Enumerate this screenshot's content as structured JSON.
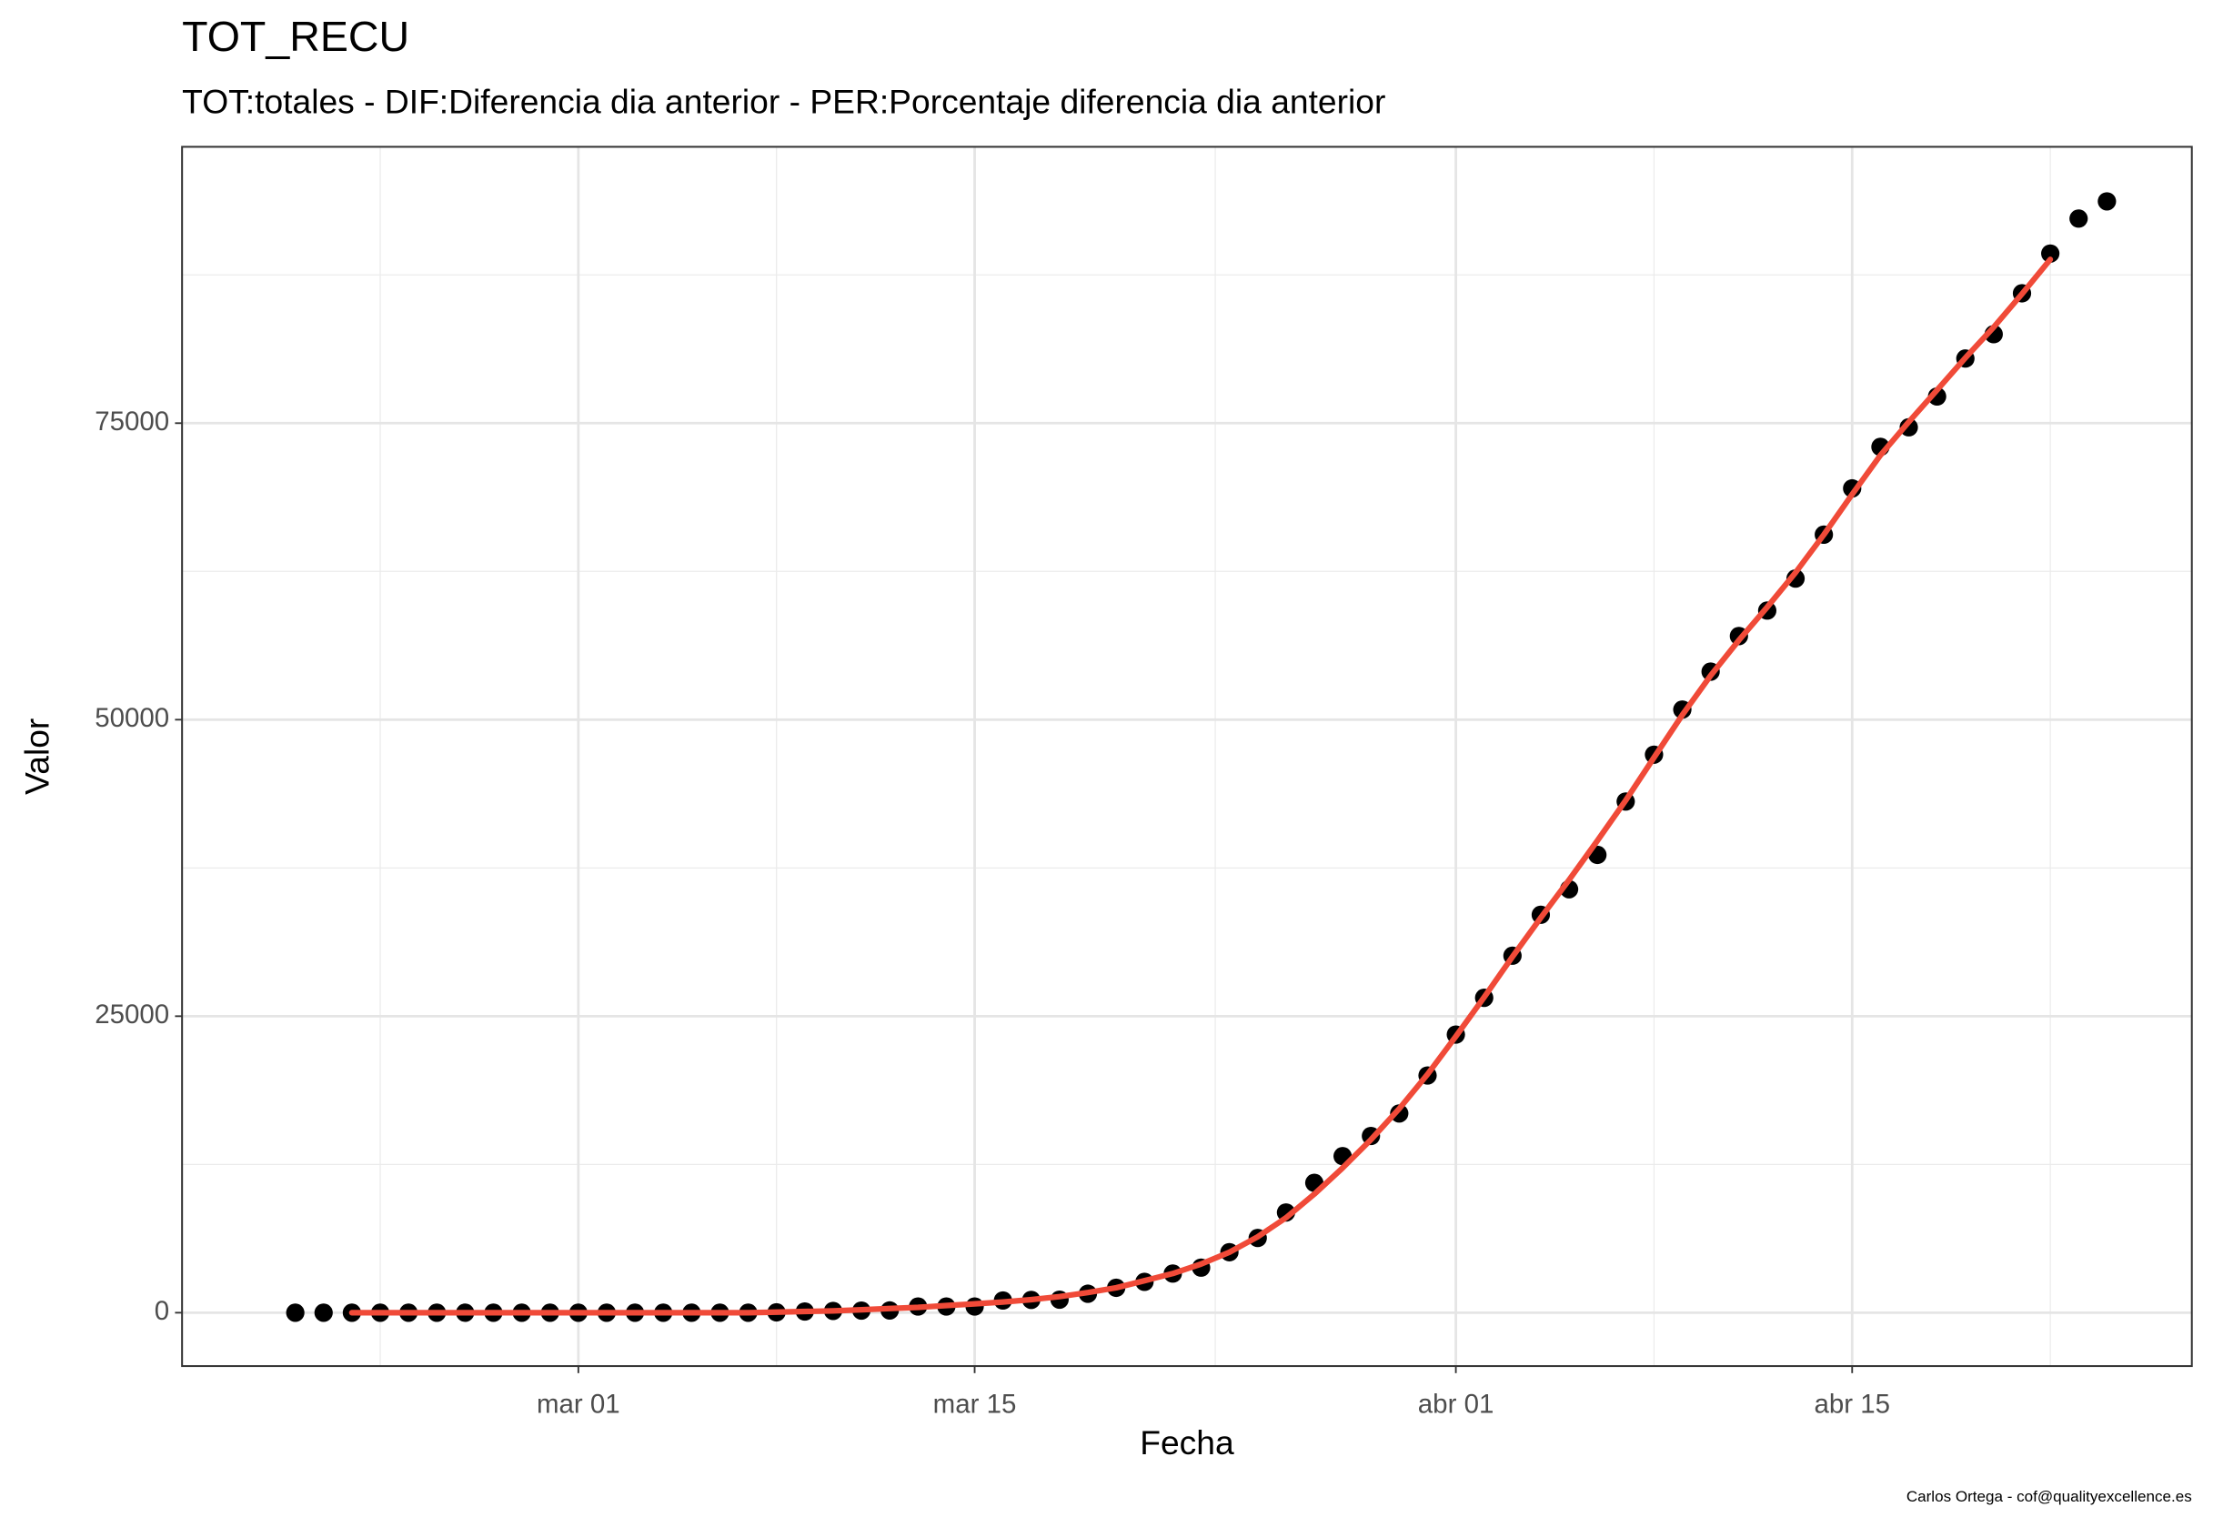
{
  "chart_data": {
    "type": "scatter",
    "title": "TOT_RECU",
    "subtitle": "TOT:totales - DIF:Diferencia dia anterior - PER:Porcentaje diferencia dia anterior",
    "x_label": "Fecha",
    "y_label": "Valor",
    "caption": "Carlos Ortega - cof@qualityexcellence.es",
    "x": [
      "02-20",
      "02-21",
      "02-22",
      "02-23",
      "02-24",
      "02-25",
      "02-26",
      "02-27",
      "02-28",
      "02-29",
      "03-01",
      "03-02",
      "03-03",
      "03-04",
      "03-05",
      "03-06",
      "03-07",
      "03-08",
      "03-09",
      "03-10",
      "03-11",
      "03-12",
      "03-13",
      "03-14",
      "03-15",
      "03-16",
      "03-17",
      "03-18",
      "03-19",
      "03-20",
      "03-21",
      "03-22",
      "03-23",
      "03-24",
      "03-25",
      "03-26",
      "03-27",
      "03-28",
      "03-29",
      "03-30",
      "03-31",
      "04-01",
      "04-02",
      "04-03",
      "04-04",
      "04-05",
      "04-06",
      "04-07",
      "04-08",
      "04-09",
      "04-10",
      "04-11",
      "04-12",
      "04-13",
      "04-14",
      "04-15",
      "04-16",
      "04-17",
      "04-18",
      "04-19",
      "04-20",
      "04-21",
      "04-22",
      "04-23",
      "04-24"
    ],
    "series": [
      {
        "color": "#000000",
        "values": [
          0,
          0,
          0,
          0,
          0,
          0,
          0,
          0,
          0,
          0,
          0,
          0,
          0,
          0,
          0,
          0,
          0,
          30,
          100,
          150,
          180,
          190,
          520,
          520,
          520,
          1030,
          1080,
          1100,
          1600,
          2100,
          2600,
          3300,
          3800,
          5100,
          6300,
          8450,
          10950,
          13200,
          14900,
          16800,
          20000,
          23450,
          26550,
          30100,
          33550,
          35700,
          38600,
          43100,
          47050,
          50850,
          54050,
          57050,
          59200,
          61900,
          65600,
          69500,
          73000,
          74650,
          77250,
          80450,
          82500,
          85950,
          89300,
          92250,
          93700
        ]
      }
    ],
    "trend": {
      "color": "#f04a38",
      "values": [
        null,
        null,
        0,
        0,
        0,
        0,
        0,
        0,
        0,
        0,
        0,
        0,
        0,
        0,
        0,
        0,
        0,
        50,
        100,
        150,
        250,
        350,
        450,
        600,
        750,
        900,
        1100,
        1350,
        1700,
        2100,
        2700,
        3300,
        4100,
        5100,
        6400,
        8000,
        10000,
        12200,
        14600,
        17200,
        20100,
        23300,
        26600,
        30000,
        33300,
        36500,
        39800,
        43200,
        46800,
        50400,
        53700,
        56700,
        59500,
        62400,
        65600,
        69000,
        72300,
        75100,
        77800,
        80500,
        83100,
        85900,
        88800,
        null,
        null
      ]
    },
    "xlim": [
      "02-16",
      "04-27"
    ],
    "xticks": [
      {
        "value": "03-01",
        "label": "mar 01"
      },
      {
        "value": "03-15",
        "label": "mar 15"
      },
      {
        "value": "04-01",
        "label": "abr 01"
      },
      {
        "value": "04-15",
        "label": "abr 15"
      }
    ],
    "ylim": [
      -4500,
      98300
    ],
    "yticks": [
      0,
      25000,
      50000,
      75000
    ],
    "grid": true
  }
}
